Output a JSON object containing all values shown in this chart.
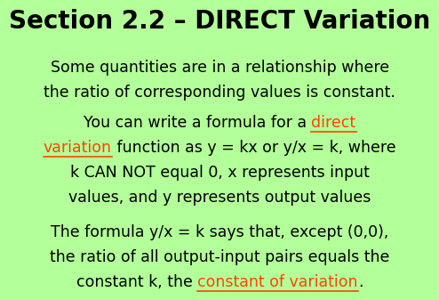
{
  "background_color": "#b3ff99",
  "title": "Section 2.2 – DIRECT Variation",
  "highlight_color": "#ff4400",
  "body_color": "#000000",
  "title_fontsize": 20,
  "body_fontsize": 12.5
}
